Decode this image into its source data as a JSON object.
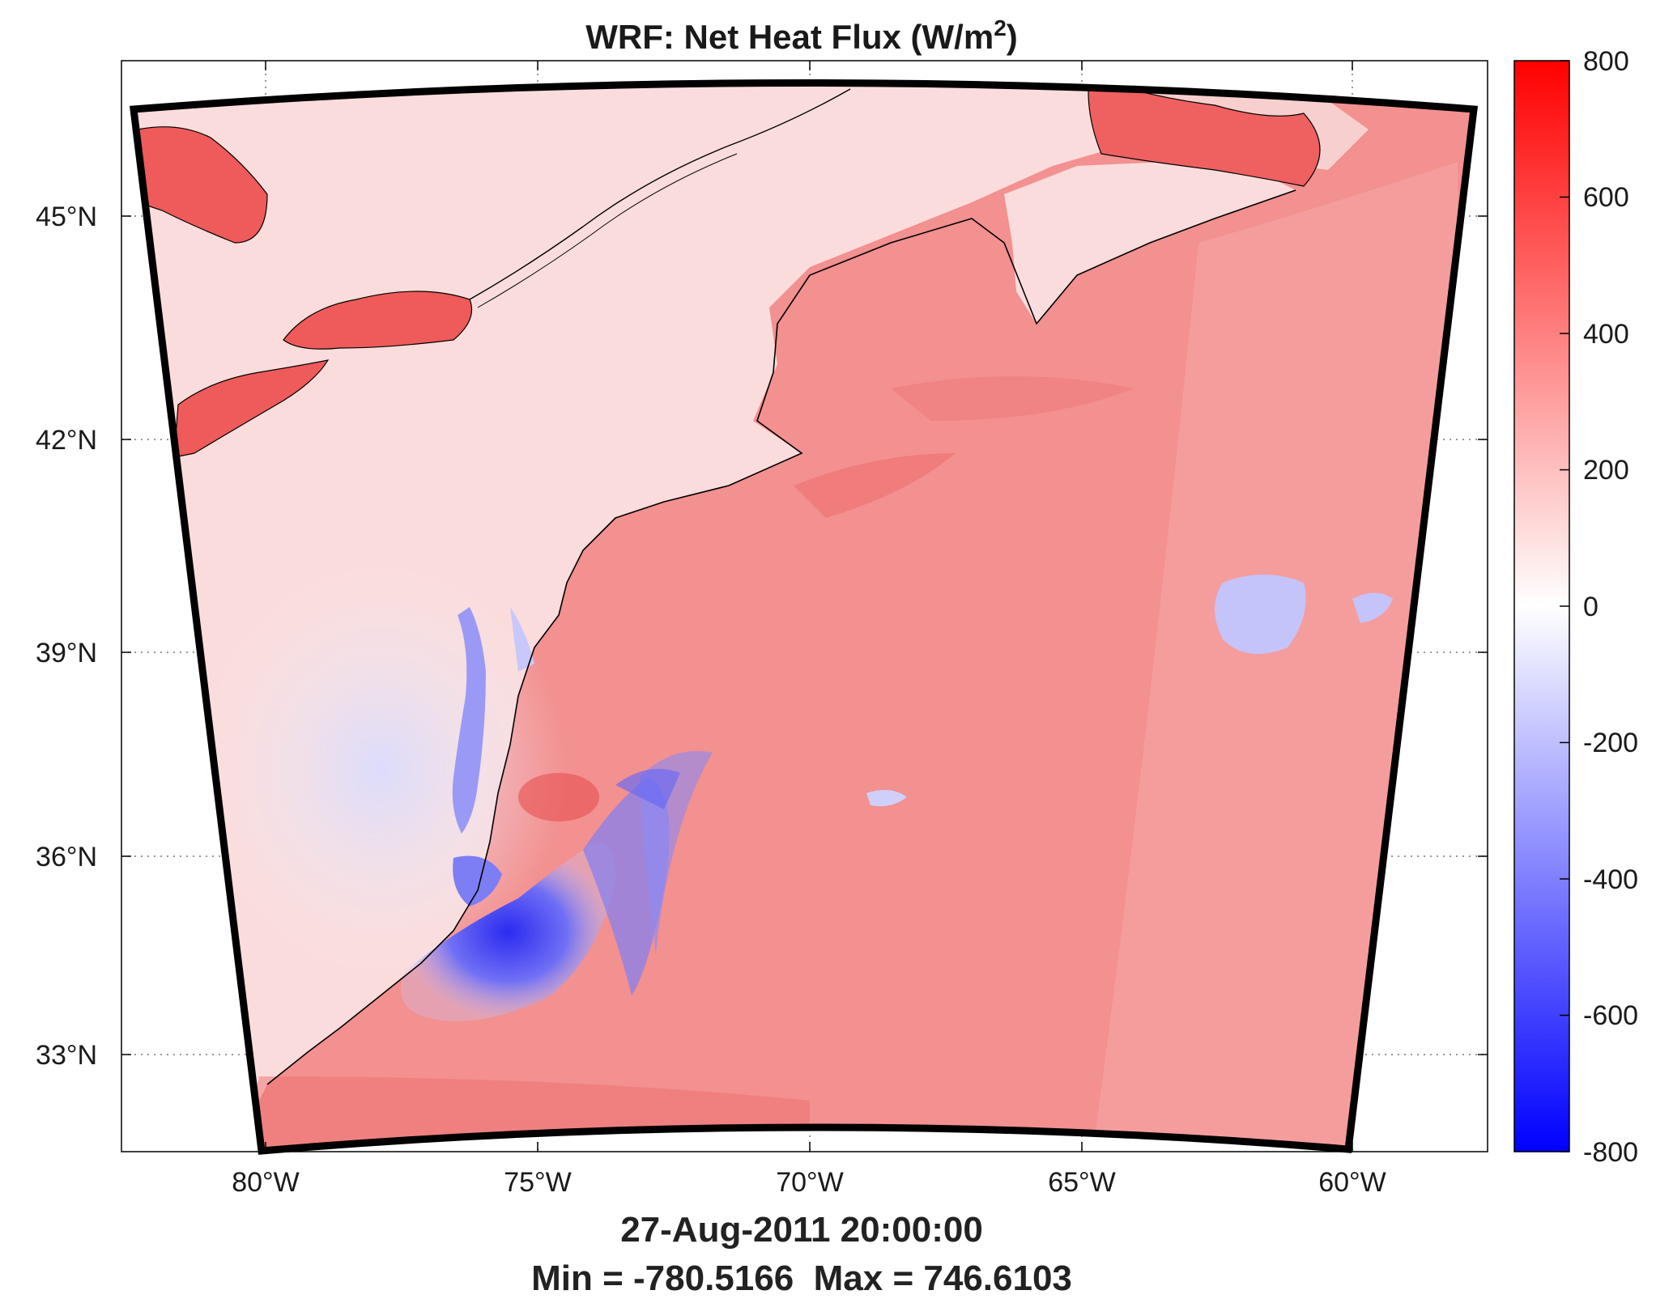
{
  "title": {
    "prefix": "WRF: Net Heat Flux (W/m",
    "superscript": "2",
    "suffix": ")"
  },
  "map": {
    "lat_labels": [
      "45°N",
      "42°N",
      "39°N",
      "36°N",
      "33°N"
    ],
    "lon_labels": [
      "80°W",
      "75°W",
      "70°W",
      "65°W",
      "60°W"
    ],
    "background_value_land": "light pink (~50–100)",
    "colors": {
      "ocean_warm": "#f08080",
      "land": "#fbd8d8",
      "cold_core": "#3333ee",
      "lake": "#ef5a5a",
      "frame": "#000000"
    }
  },
  "colorbar": {
    "tick_labels": [
      "800",
      "600",
      "400",
      "200",
      "0",
      "-200",
      "-400",
      "-600",
      "-800"
    ],
    "vmin": -800,
    "vmax": 800,
    "colors": {
      "max": "#ff0000",
      "mid": "#ffffff",
      "min": "#0000ff"
    }
  },
  "footer": {
    "timestamp": "27-Aug-2011 20:00:00",
    "minmax": "Min = -780.5166  Max = 746.6103"
  }
}
